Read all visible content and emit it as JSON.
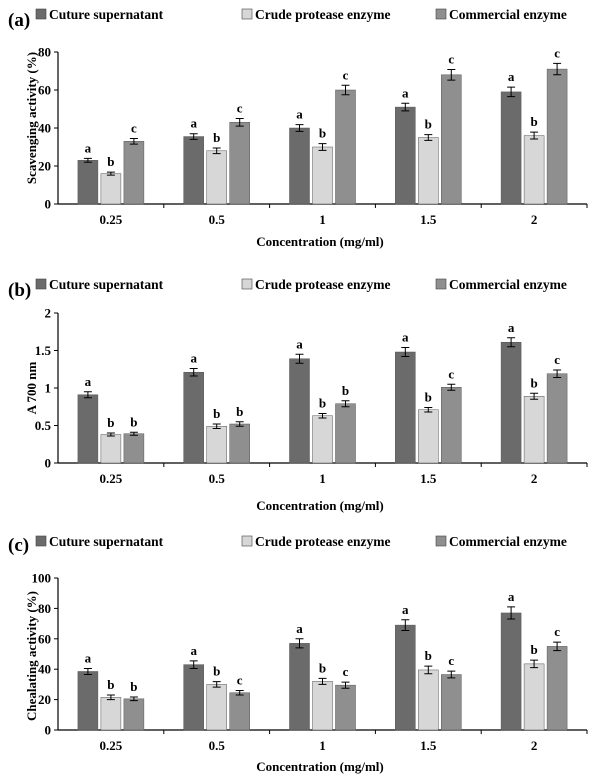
{
  "chart_data": [
    {
      "panel_label": "(a)",
      "type": "bar",
      "ylabel": "Scavenging activity (%)",
      "xlabel": "Concentration (mg/ml)",
      "ylim": [
        0,
        80
      ],
      "yticks": [
        "0",
        "20",
        "40",
        "60",
        "80"
      ],
      "ytick_values": [
        0,
        20,
        40,
        60,
        80
      ],
      "categories": [
        "0.25",
        "0.5",
        "1",
        "1.5",
        "2"
      ],
      "legend_position": "top",
      "series": [
        {
          "name": "Cuture supernatant",
          "color": "#6b6b6b",
          "values": [
            23,
            35.5,
            40,
            51,
            59
          ],
          "errors": [
            1,
            1.5,
            1.8,
            2,
            2.5
          ],
          "letters": [
            "a",
            "a",
            "a",
            "a",
            "a"
          ]
        },
        {
          "name": "Crude protease enzyme",
          "color": "#d7d7d7",
          "values": [
            16,
            28,
            30,
            35,
            36
          ],
          "errors": [
            0.8,
            1.5,
            1.8,
            1.5,
            1.8
          ],
          "letters": [
            "b",
            "b",
            "b",
            "b",
            "b"
          ]
        },
        {
          "name": "Commercial enzyme",
          "color": "#8f8f8f",
          "values": [
            33,
            43,
            60,
            68,
            71
          ],
          "errors": [
            1.5,
            2,
            2.5,
            2.8,
            3
          ],
          "letters": [
            "c",
            "c",
            "c",
            "c",
            "c"
          ]
        }
      ]
    },
    {
      "panel_label": "(b)",
      "type": "bar",
      "ylabel": "A 700 nm",
      "xlabel": "Concentration (mg/ml)",
      "ylim": [
        0,
        2
      ],
      "yticks": [
        "0",
        "0.5",
        "1",
        "1.5",
        "2"
      ],
      "ytick_values": [
        0,
        0.5,
        1,
        1.5,
        2
      ],
      "categories": [
        "0.25",
        "0.5",
        "1",
        "1.5",
        "2"
      ],
      "legend_position": "top",
      "series": [
        {
          "name": "Cuture supernatant",
          "color": "#6b6b6b",
          "values": [
            0.91,
            1.21,
            1.39,
            1.48,
            1.61
          ],
          "errors": [
            0.04,
            0.05,
            0.06,
            0.06,
            0.06
          ],
          "letters": [
            "a",
            "a",
            "a",
            "a",
            "a"
          ]
        },
        {
          "name": "Crude protease enzyme",
          "color": "#d7d7d7",
          "values": [
            0.38,
            0.49,
            0.63,
            0.71,
            0.89
          ],
          "errors": [
            0.02,
            0.03,
            0.03,
            0.03,
            0.04
          ],
          "letters": [
            "b",
            "b",
            "b",
            "b",
            "b"
          ]
        },
        {
          "name": "Commercial enzyme",
          "color": "#8f8f8f",
          "values": [
            0.39,
            0.52,
            0.79,
            1.01,
            1.19
          ],
          "errors": [
            0.02,
            0.03,
            0.04,
            0.04,
            0.05
          ],
          "letters": [
            "b",
            "b",
            "b",
            "c",
            "c"
          ]
        }
      ]
    },
    {
      "panel_label": "(c)",
      "type": "bar",
      "ylabel": "Chealating activity (%)",
      "xlabel": "Concentration (mg/ml)",
      "ylim": [
        0,
        100
      ],
      "yticks": [
        "0",
        "20",
        "40",
        "60",
        "80",
        "100"
      ],
      "ytick_values": [
        0,
        20,
        40,
        60,
        80,
        100
      ],
      "categories": [
        "0.25",
        "0.5",
        "1",
        "1.5",
        "2"
      ],
      "legend_position": "top",
      "series": [
        {
          "name": "Cuture supernatant",
          "color": "#6b6b6b",
          "values": [
            38.5,
            43,
            57,
            69,
            77
          ],
          "errors": [
            2,
            2.5,
            3,
            3.5,
            4
          ],
          "letters": [
            "a",
            "a",
            "a",
            "a",
            "a"
          ]
        },
        {
          "name": "Crude protease enzyme",
          "color": "#d7d7d7",
          "values": [
            21.5,
            30,
            32,
            39.5,
            43.5
          ],
          "errors": [
            1.5,
            1.8,
            2,
            2.5,
            2.5
          ],
          "letters": [
            "b",
            "b",
            "b",
            "b",
            "b"
          ]
        },
        {
          "name": "Commercial enzyme",
          "color": "#8f8f8f",
          "values": [
            20.5,
            24.5,
            29.5,
            36.5,
            55
          ],
          "errors": [
            1.2,
            1.5,
            2,
            2.2,
            2.8
          ],
          "letters": [
            "b",
            "c",
            "c",
            "c",
            "c"
          ]
        }
      ]
    }
  ]
}
